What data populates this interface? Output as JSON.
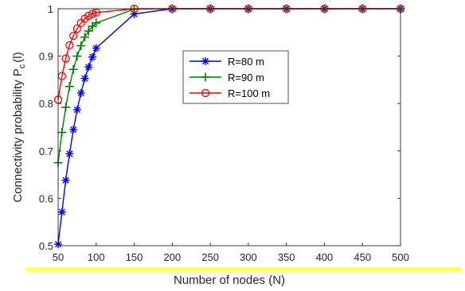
{
  "chart_data": {
    "type": "line",
    "title": "",
    "xlabel": "Number of nodes (N)",
    "ylabel": "Connectivity probability P",
    "ylabel_sub": "c",
    "ylabel_suffix": "(l)",
    "xlim": [
      50,
      500
    ],
    "ylim": [
      0.5,
      1
    ],
    "xticks": [
      50,
      100,
      150,
      200,
      250,
      300,
      350,
      400,
      450,
      500
    ],
    "xtick_labels": [
      "50",
      "100",
      "150",
      "200",
      "250",
      "300",
      "350",
      "400",
      "450",
      "500"
    ],
    "yticks": [
      0.5,
      0.6,
      0.7,
      0.8,
      0.9,
      1
    ],
    "ytick_labels": [
      "0.5",
      "0.6",
      "0.7",
      "0.8",
      "0.9",
      "1"
    ],
    "grid": false,
    "legend_position": "top-right-of-center",
    "x": [
      50,
      55,
      60,
      65,
      70,
      75,
      80,
      85,
      90,
      95,
      100,
      150,
      200,
      250,
      300,
      350,
      400,
      450,
      500
    ],
    "series": [
      {
        "name": "R=80 m",
        "color": "#0000ff",
        "marker": "asterisk",
        "values": [
          0.503,
          0.571,
          0.638,
          0.694,
          0.745,
          0.787,
          0.822,
          0.853,
          0.877,
          0.898,
          0.917,
          0.989,
          1.0,
          1.0,
          1.0,
          1.0,
          1.0,
          1.0,
          1.0
        ]
      },
      {
        "name": "R=90 m",
        "color": "#008000",
        "marker": "plus",
        "values": [
          0.675,
          0.739,
          0.792,
          0.836,
          0.872,
          0.9,
          0.922,
          0.94,
          0.953,
          0.963,
          0.97,
          0.999,
          1.0,
          1.0,
          1.0,
          1.0,
          1.0,
          1.0,
          1.0
        ]
      },
      {
        "name": "R=100 m",
        "color": "#ff0000",
        "marker": "circle",
        "values": [
          0.808,
          0.858,
          0.895,
          0.923,
          0.943,
          0.958,
          0.97,
          0.979,
          0.985,
          0.989,
          0.992,
          1.0,
          1.0,
          1.0,
          1.0,
          1.0,
          1.0,
          1.0,
          1.0
        ]
      }
    ]
  }
}
